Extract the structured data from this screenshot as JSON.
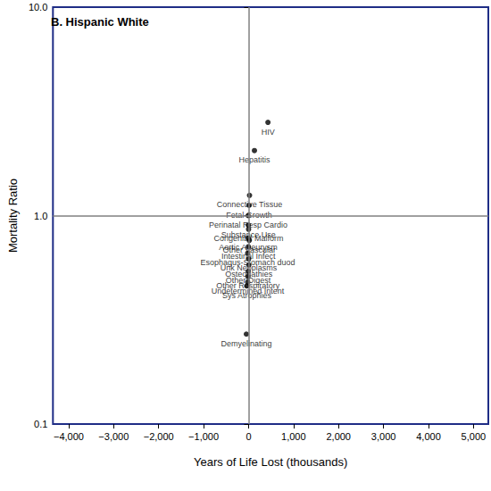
{
  "chart_data": {
    "type": "scatter",
    "title": "B. Hispanic White",
    "xlabel": "Years of Life Lost (thousands)",
    "ylabel": "Mortality Ratio",
    "log": "y",
    "grid": false,
    "marker": "circle",
    "color": "#000000",
    "xlim": [
      -4350,
      5330
    ],
    "xticks": [
      {
        "value": -4000,
        "label": "−4,000"
      },
      {
        "value": -3000,
        "label": "−3,000"
      },
      {
        "value": -2000,
        "label": "−2,000"
      },
      {
        "value": -1000,
        "label": "−1,000"
      },
      0,
      {
        "value": 1000,
        "label": "1,000"
      },
      {
        "value": 2000,
        "label": "2,000"
      },
      {
        "value": 3000,
        "label": "3,000"
      },
      {
        "value": 4000,
        "label": "4,000"
      },
      {
        "value": 5000,
        "label": "5,000"
      }
    ],
    "ylim": [
      0.1,
      10
    ],
    "yticks": [
      0.1,
      {
        "value": 1,
        "label": "1.0"
      },
      {
        "value": 10,
        "label": "10.0"
      }
    ],
    "reference_lines": [
      {
        "axis": "x",
        "value": 0
      },
      {
        "axis": "y",
        "value": 1
      }
    ],
    "point_labels": [
      "HIV",
      "Hepatitis",
      "Connective Tissue",
      "Fetal Growth",
      "Perinatal Resp Cardio",
      "Substance Use",
      "Congenital Malform",
      "Aortic Aneurysm",
      "Other Vascular",
      "Intestinal Infect",
      "Esophagus-Stomach duod",
      "Unk Neoplasms",
      "Osteopathies",
      "Other Digest",
      "Other Respiratory",
      "Sys Atrophies",
      "Undetermined Intent",
      "Demyelinating"
    ],
    "x": [
      430,
      130,
      20,
      10,
      -10,
      -5,
      0,
      -10,
      15,
      -5,
      -20,
      0,
      5,
      -10,
      -15,
      -40,
      -20,
      -50
    ],
    "values": [
      2.8,
      2.05,
      1.25,
      1.12,
      1.0,
      0.9,
      0.86,
      0.78,
      0.76,
      0.71,
      0.66,
      0.62,
      0.58,
      0.54,
      0.51,
      0.46,
      0.48,
      0.27
    ]
  }
}
